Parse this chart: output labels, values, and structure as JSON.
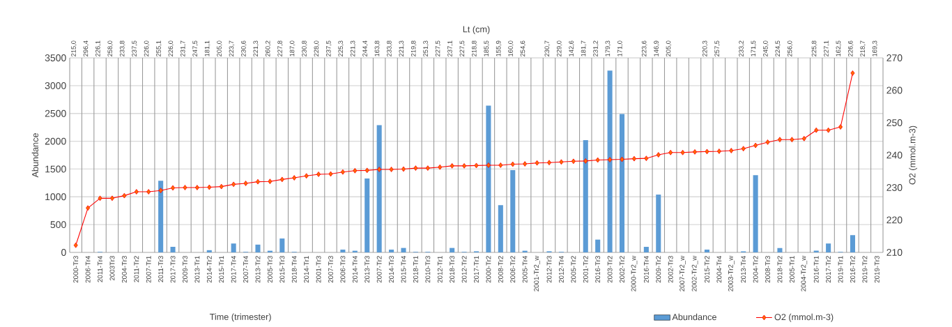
{
  "chart_data": {
    "type": "bar",
    "xlabel": "Time (trimester)",
    "ylabel": "Abundance",
    "y2label": "O2 (mmol.m-3)",
    "categories": [
      "2000-Tr3",
      "2006-Tr4",
      "2011-Tr4",
      "2003Tr3",
      "2004-Tr3",
      "2011-Tr2",
      "2007-Tr1",
      "2011-Tr3",
      "2017-Tr3",
      "2009-Tr3",
      "2013-Tr1",
      "2014-Tr2",
      "2015-Tr1",
      "2017-Tr4",
      "2007-Tr4",
      "2013-Tr2",
      "2005-Tr3",
      "2015-Tr3",
      "2018-Tr4",
      "2014-Tr1",
      "2001-Tr3",
      "2007-Tr3",
      "2006-Tr3",
      "2014-Tr4",
      "2013-Tr3",
      "2007-Tr2",
      "2014-Tr3",
      "2015-Tr4",
      "2018-Tr1",
      "2010-Tr3",
      "2012-Tr1",
      "2018-Tr3",
      "2012-Tr2",
      "2017-Tr1",
      "2000-Tr2",
      "2008-Tr2",
      "2006-Tr2",
      "2005-Tr4",
      "2001-Tr2_w",
      "2012-Tr3",
      "2012-Tr4",
      "2005-Tr2",
      "2001-Tr2",
      "2016-Tr3",
      "2003-Tr2",
      "2002-Tr2",
      "2000-Tr2_w",
      "2016-Tr4",
      "2009-Tr2",
      "2002-Tr3",
      "2007-Tr2_w",
      "2002-Tr2_w",
      "2015-Tr2",
      "2004-Tr4",
      "2003-Tr2_w",
      "2013-Tr4",
      "2004-Tr2",
      "2008-Tr3",
      "2018-Tr2",
      "2005-Tr1",
      "2004-Tr2_w",
      "2016-Tr1",
      "2017-Tr2",
      "2019-Tr1",
      "2016-Tr2",
      "2019-Tr2",
      "2019-Tr3"
    ],
    "ylim": [
      0,
      3500
    ],
    "yticks": [
      0,
      500,
      1000,
      1500,
      2000,
      2500,
      3000,
      3500
    ],
    "y2lim": [
      210,
      270
    ],
    "y2ticks": [
      210,
      220,
      230,
      240,
      250,
      260,
      270
    ],
    "grid": true,
    "legend": "bottom",
    "marker": "diamond",
    "series": [
      {
        "name": "Abundance",
        "type": "bar",
        "color": "#5b9bd5",
        "values": [
          0,
          0,
          10,
          0,
          0,
          0,
          0,
          1290,
          100,
          0,
          0,
          40,
          0,
          160,
          10,
          140,
          30,
          250,
          10,
          0,
          0,
          0,
          50,
          30,
          1330,
          2290,
          50,
          80,
          10,
          10,
          0,
          80,
          10,
          20,
          2640,
          850,
          1480,
          30,
          0,
          20,
          10,
          0,
          2020,
          230,
          3270,
          2490,
          0,
          100,
          1040,
          0,
          0,
          0,
          50,
          0,
          0,
          20,
          1390,
          0,
          80,
          0,
          0,
          30,
          160,
          10,
          310,
          0,
          0
        ]
      },
      {
        "name": "O2 (mmol.m-3)",
        "type": "line",
        "axis": "y2",
        "color": "#ff0000",
        "values": [
          212.2,
          223.7,
          226.7,
          226.7,
          227.5,
          228.7,
          228.7,
          229.1,
          229.9,
          230.0,
          230.0,
          230.1,
          230.3,
          231.0,
          231.3,
          231.8,
          231.9,
          232.5,
          233.0,
          233.6,
          234.1,
          234.2,
          234.8,
          235.2,
          235.3,
          235.6,
          235.6,
          235.7,
          236.0,
          236.0,
          236.3,
          236.7,
          236.7,
          236.8,
          236.9,
          236.9,
          237.2,
          237.3,
          237.6,
          237.7,
          237.9,
          238.1,
          238.2,
          238.5,
          238.6,
          238.7,
          238.9,
          239.0,
          240.1,
          240.8,
          240.8,
          241.0,
          241.1,
          241.2,
          241.4,
          242.0,
          243.0,
          244.0,
          244.8,
          244.8,
          245.1,
          247.7,
          247.7,
          248.7,
          265.3,
          null,
          null
        ]
      }
    ],
    "x2label": "Lt (cm)",
    "annotations": [
      "215,0",
      "296,4",
      "226,1",
      "258,0",
      "233,8",
      "237,5",
      "226,0",
      "255,1",
      "226,0",
      "231,7",
      "247,5",
      "181,1",
      "205,0",
      "223,7",
      "230,6",
      "221,3",
      "260,2",
      "227,8",
      "187,0",
      "230,8",
      "228,0",
      "237,5",
      "225,3",
      "221,3",
      "244,4",
      "163,8",
      "233,8",
      "221,3",
      "219,8",
      "251,3",
      "227,5",
      "237,1",
      "227,5",
      "218,8",
      "185,5",
      "155,9",
      "160,0",
      "254,6",
      null,
      "230,7",
      "229,0",
      "142,6",
      "181,7",
      "231,2",
      "179,3",
      "171,0",
      null,
      "223,6",
      "146,9",
      "205,0",
      null,
      null,
      "220,3",
      "257,5",
      null,
      "233,2",
      "171,5",
      "245,0",
      "224,5",
      "256,0",
      null,
      "225,8",
      "227,1",
      "162,5",
      "226,6",
      "218,7",
      "169,3"
    ]
  }
}
